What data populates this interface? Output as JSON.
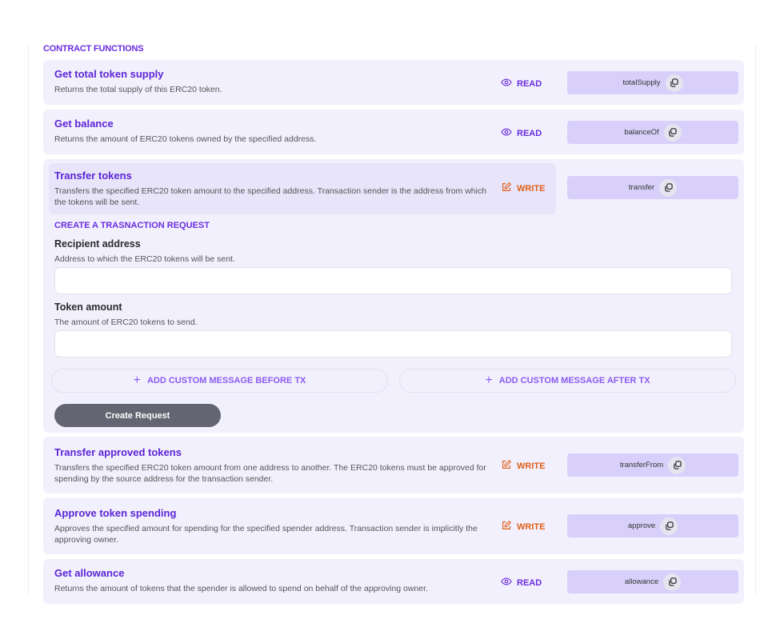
{
  "section_title": "CONTRACT FUNCTIONS",
  "colors": {
    "accent": "#6a2ee0",
    "write": "#e0601a",
    "card": "#f2f0fd",
    "fn_chip": "#d8d0fa"
  },
  "functions": [
    {
      "title": "Get total token supply",
      "desc": "Returns the total supply of this ERC20 token.",
      "kind": "READ",
      "fn": "totalSupply"
    },
    {
      "title": "Get balance",
      "desc": "Returns the amount of ERC20 tokens owned by the specified address.",
      "kind": "READ",
      "fn": "balanceOf"
    },
    {
      "title": "Transfer tokens",
      "desc": "Transfers the specified ERC20 token amount to the specified address. Transaction sender is the address from which the tokens will be sent.",
      "kind": "WRITE",
      "fn": "transfer"
    },
    {
      "title": "Transfer approved tokens",
      "desc": "Transfers the specified ERC20 token amount from one address to another. The ERC20 tokens must be approved for spending by the source address for the transaction sender.",
      "kind": "WRITE",
      "fn": "transferFrom"
    },
    {
      "title": "Approve token spending",
      "desc": "Approves the specified amount for spending for the specified spender address. Transaction sender is implicitly the approving owner.",
      "kind": "WRITE",
      "fn": "approve"
    },
    {
      "title": "Get allowance",
      "desc": "Returns the amount of tokens that the spender is allowed to spend on behalf of the approving owner.",
      "kind": "READ",
      "fn": "allowance"
    }
  ],
  "request": {
    "title": "CREATE A TRASNACTION REQUEST",
    "recipient_label": "Recipient address",
    "recipient_desc": "Address to which the ERC20 tokens will be sent.",
    "recipient_value": "",
    "amount_label": "Token amount",
    "amount_desc": "The amount of ERC20 tokens to send.",
    "amount_value": "",
    "add_before": "ADD CUSTOM MESSAGE BEFORE TX",
    "add_after": "ADD CUSTOM MESSAGE AFTER TX",
    "create": "Create Request"
  }
}
